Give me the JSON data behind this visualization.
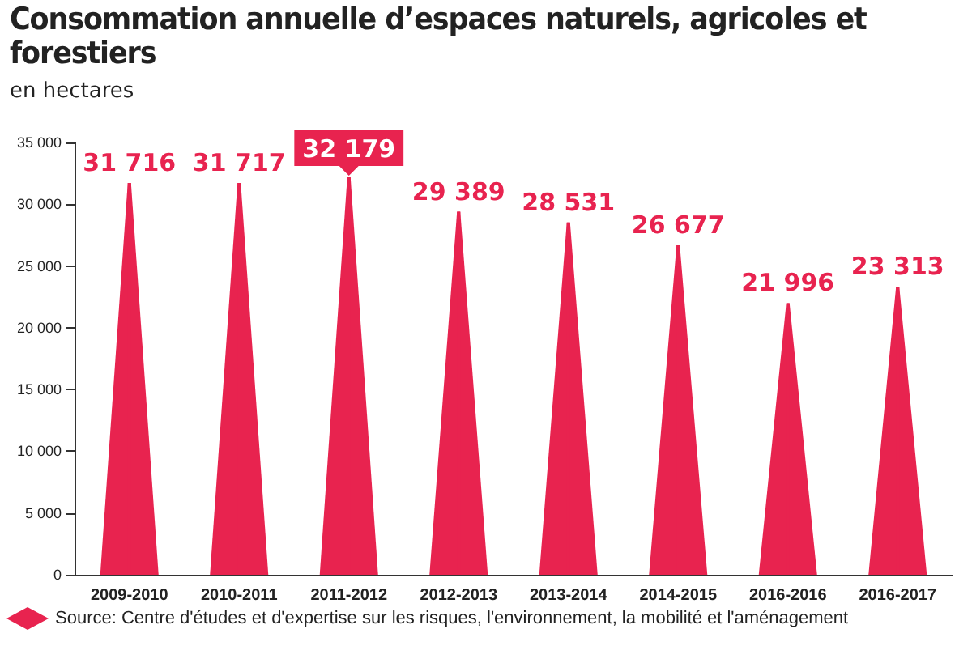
{
  "chart_data": {
    "type": "bar",
    "title": "Consommation annuelle d’espaces naturels, agricoles et forestiers",
    "subtitle": "en hectares",
    "categories": [
      "2009-2010",
      "2010-2011",
      "2011-2012",
      "2012-2013",
      "2013-2014",
      "2014-2015",
      "2016-2016",
      "2016-2017"
    ],
    "values": [
      31716,
      31717,
      32179,
      29389,
      28531,
      26677,
      21996,
      23313
    ],
    "value_labels": [
      "31 716",
      "31 717",
      "32 179",
      "29 389",
      "28 531",
      "26 677",
      "21 996",
      "23 313"
    ],
    "color": "#e8234f",
    "ylim": [
      0,
      35000
    ],
    "yticks": [
      {
        "value": 0,
        "label": "0"
      },
      {
        "value": 5000,
        "label": "5 000"
      },
      {
        "value": 10000,
        "label": "10 000"
      },
      {
        "value": 15000,
        "label": "15 000"
      },
      {
        "value": 20000,
        "label": "20 000"
      },
      {
        "value": 25000,
        "label": "25 000"
      },
      {
        "value": 30000,
        "label": "30 000"
      },
      {
        "value": 35000,
        "label": "35 000"
      }
    ],
    "grid": false,
    "annotations": [
      "Source: Centre d'études et d'expertise sur les risques, l'environnement, la mobilité et l'aménagement"
    ]
  }
}
